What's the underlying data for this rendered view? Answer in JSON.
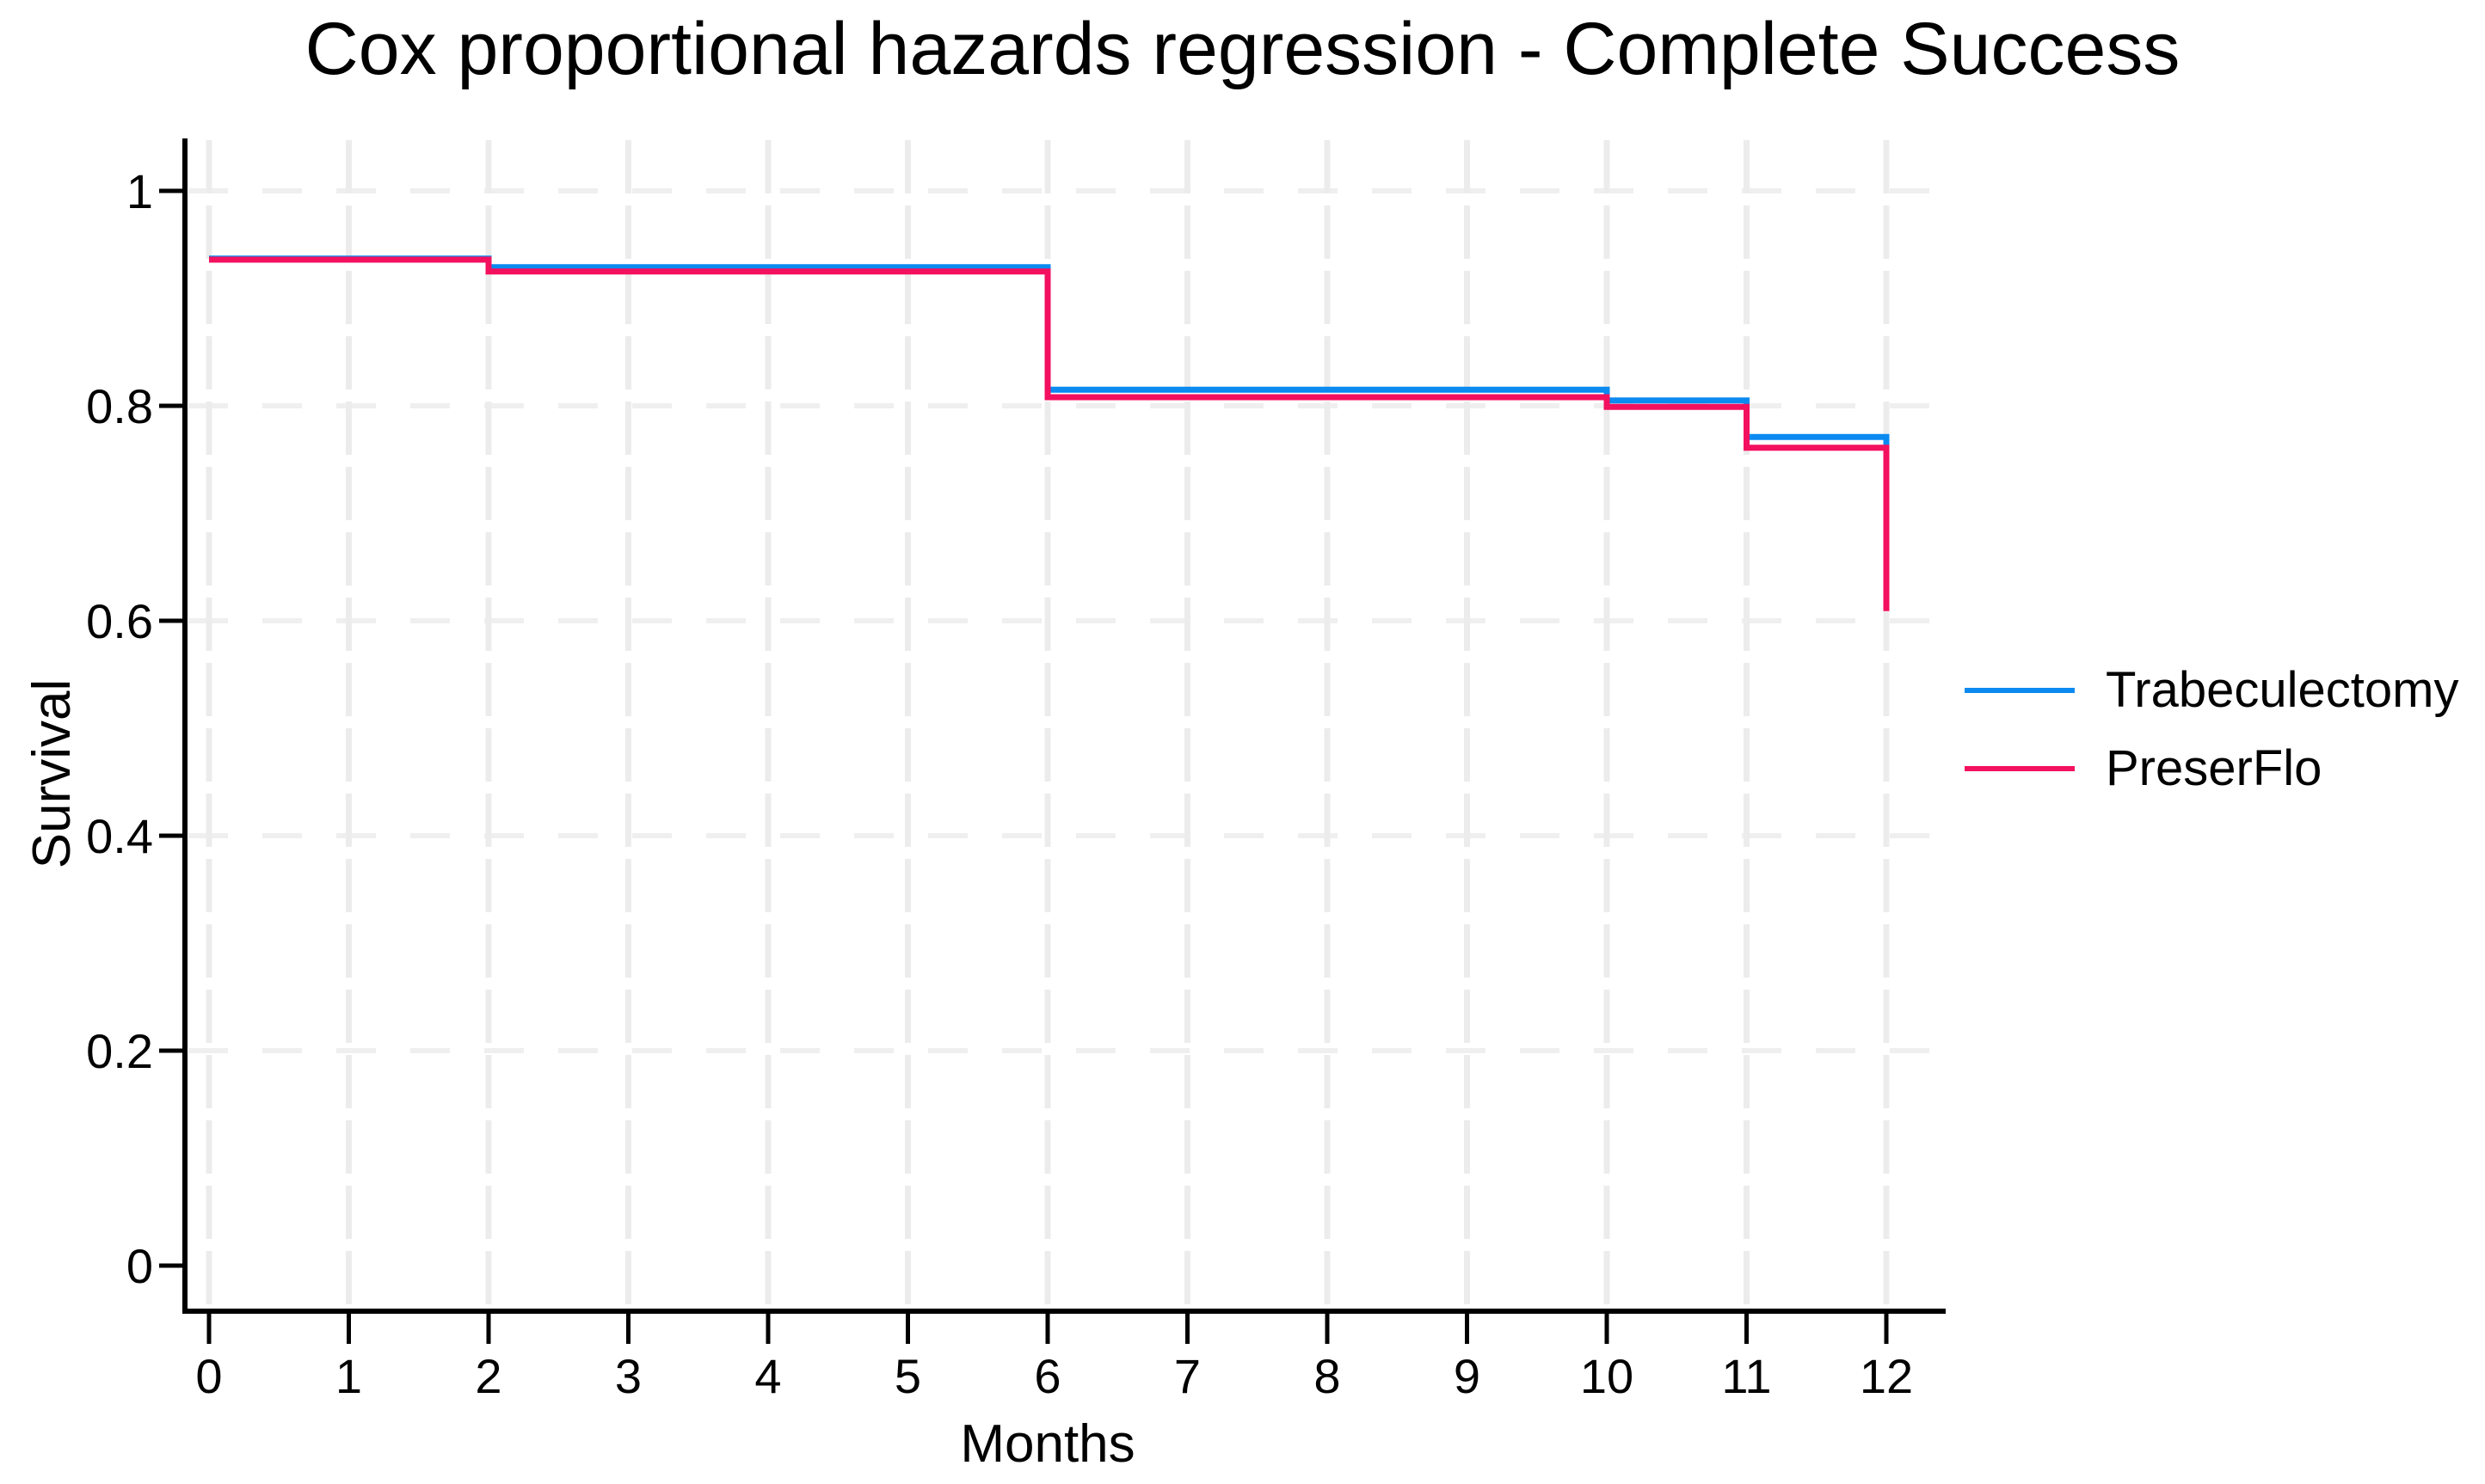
{
  "chart_data": {
    "type": "line",
    "step": true,
    "title": "Cox proportional hazards regression - Complete Success",
    "xlabel": "Months",
    "ylabel": "Survival",
    "xlim": [
      0,
      12
    ],
    "ylim": [
      0,
      1
    ],
    "grid": true,
    "legend_position": "right-middle",
    "x_ticks": [
      0,
      1,
      2,
      3,
      4,
      5,
      6,
      7,
      8,
      9,
      10,
      11,
      12
    ],
    "y_ticks": [
      {
        "value": 1,
        "label": "1"
      },
      {
        "value": 0.8,
        "label": "0.8"
      },
      {
        "value": 0.6,
        "label": "0.6"
      },
      {
        "value": 0.4,
        "label": "0.4"
      },
      {
        "value": 0.2,
        "label": "0.2"
      },
      {
        "value": 0,
        "label": "0"
      }
    ],
    "series": [
      {
        "name": "Trabeculectomy",
        "color": "#0b8af0",
        "points": [
          [
            0,
            0.937
          ],
          [
            2,
            0.937
          ],
          [
            2,
            0.929
          ],
          [
            6,
            0.929
          ],
          [
            6,
            0.815
          ],
          [
            10,
            0.815
          ],
          [
            10,
            0.805
          ],
          [
            11,
            0.805
          ],
          [
            11,
            0.771
          ],
          [
            12,
            0.771
          ],
          [
            12,
            0.761
          ]
        ]
      },
      {
        "name": "PreserFlo",
        "color": "#f3105f",
        "points": [
          [
            0,
            0.936
          ],
          [
            2,
            0.936
          ],
          [
            2,
            0.925
          ],
          [
            6,
            0.925
          ],
          [
            6,
            0.808
          ],
          [
            10,
            0.808
          ],
          [
            10,
            0.799
          ],
          [
            11,
            0.799
          ],
          [
            11,
            0.761
          ],
          [
            12,
            0.761
          ],
          [
            12,
            0.609
          ]
        ]
      }
    ],
    "colors": {
      "axis": "#000000",
      "grid_vertical": "#ececec",
      "grid_horizontal": "#efefef",
      "text": "#000000"
    }
  }
}
